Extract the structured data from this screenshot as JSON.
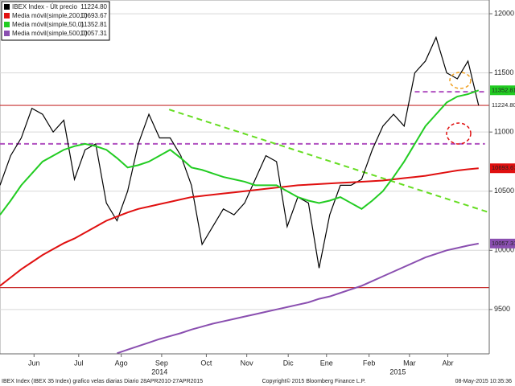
{
  "chart_data": {
    "type": "line",
    "xlim": [
      0,
      46
    ],
    "ylim": [
      9125,
      12116
    ],
    "yticks": [
      9500,
      10000,
      10500,
      11000,
      11500,
      12000
    ],
    "grid": true,
    "xticks": [
      {
        "value": 3.2,
        "label": "Jun"
      },
      {
        "value": 7.4,
        "label": "Jul"
      },
      {
        "value": 11.4,
        "label": "Ago"
      },
      {
        "value": 15.2,
        "label": "Sep"
      },
      {
        "value": 19.4,
        "label": "Oct"
      },
      {
        "value": 23.2,
        "label": "Nov"
      },
      {
        "value": 27.1,
        "label": "Dic"
      },
      {
        "value": 30.7,
        "label": "Ene"
      },
      {
        "value": 34.7,
        "label": "Feb"
      },
      {
        "value": 38.5,
        "label": "Mar"
      },
      {
        "value": 42.1,
        "label": "Abr"
      }
    ],
    "year_labels": [
      {
        "value": 15.0,
        "label": "2014"
      },
      {
        "value": 37.4,
        "label": "2015"
      }
    ],
    "x": [
      0,
      1,
      2,
      3,
      4,
      5,
      6,
      7,
      8,
      9,
      10,
      11,
      12,
      13,
      14,
      15,
      16,
      17,
      18,
      19,
      20,
      21,
      22,
      23,
      24,
      25,
      26,
      27,
      28,
      29,
      30,
      31,
      32,
      33,
      34,
      35,
      36,
      37,
      38,
      39,
      40,
      41,
      42,
      43,
      44,
      45
    ],
    "series": [
      {
        "name": "IBEX Index - Últ precio",
        "last_label": "11224.80",
        "color": "#000000",
        "box": false,
        "values": [
          10550,
          10800,
          10950,
          11200,
          11150,
          11000,
          11100,
          10600,
          10850,
          10900,
          10400,
          10250,
          10500,
          10900,
          11150,
          10950,
          10950,
          10800,
          10550,
          10050,
          10200,
          10350,
          10300,
          10400,
          10600,
          10800,
          10750,
          10200,
          10450,
          10400,
          9850,
          10300,
          10550,
          10550,
          10600,
          10850,
          11050,
          11150,
          11050,
          11500,
          11600,
          11800,
          11500,
          11450,
          11600,
          11224.8
        ]
      },
      {
        "name": "Media móvil(simple,200,0)",
        "last_label": "10693.67",
        "color": "#e01010",
        "box": true,
        "values": [
          9700,
          9770,
          9840,
          9900,
          9960,
          10010,
          10060,
          10100,
          10150,
          10200,
          10250,
          10285,
          10320,
          10350,
          10370,
          10390,
          10410,
          10430,
          10450,
          10460,
          10470,
          10480,
          10490,
          10500,
          10510,
          10520,
          10530,
          10540,
          10550,
          10555,
          10560,
          10565,
          10570,
          10575,
          10580,
          10585,
          10590,
          10600,
          10610,
          10620,
          10630,
          10645,
          10660,
          10675,
          10685,
          10693.67
        ]
      },
      {
        "name": "Media móvil(simple,50,0)",
        "last_label": "11352.81",
        "color": "#22cc22",
        "box": true,
        "values": [
          10300,
          10420,
          10550,
          10650,
          10750,
          10800,
          10850,
          10880,
          10900,
          10880,
          10850,
          10780,
          10700,
          10720,
          10750,
          10800,
          10850,
          10780,
          10700,
          10680,
          10650,
          10620,
          10600,
          10580,
          10550,
          10550,
          10550,
          10500,
          10450,
          10420,
          10400,
          10420,
          10450,
          10400,
          10350,
          10420,
          10500,
          10620,
          10750,
          10900,
          11050,
          11150,
          11250,
          11300,
          11320,
          11352.81
        ]
      },
      {
        "name": "Media móvil(simple,500,0)",
        "last_label": "10057.31",
        "color": "#8a4fb0",
        "box": true,
        "values": [
          null,
          null,
          null,
          null,
          null,
          null,
          null,
          null,
          null,
          null,
          null,
          9130,
          9160,
          9190,
          9220,
          9250,
          9275,
          9300,
          9330,
          9355,
          9380,
          9400,
          9420,
          9440,
          9460,
          9480,
          9500,
          9520,
          9540,
          9560,
          9590,
          9610,
          9640,
          9670,
          9700,
          9740,
          9780,
          9820,
          9860,
          9900,
          9940,
          9970,
          10000,
          10020,
          10040,
          10057.31
        ]
      }
    ],
    "hlines": [
      {
        "value": 11225,
        "color": "#c83030",
        "dash": false,
        "from": 0,
        "to": 46
      },
      {
        "value": 9685,
        "color": "#c83030",
        "dash": false,
        "from": 0,
        "to": 46
      },
      {
        "value": 10900,
        "color": "#b050c0",
        "dash": true,
        "from": 0,
        "to": 45.6
      },
      {
        "value": 11340,
        "color": "#b050c0",
        "dash": true,
        "from": 39,
        "to": 45.6
      }
    ],
    "trendline": {
      "x": [
        15.9,
        46
      ],
      "values": [
        11190,
        10320
      ],
      "color": "#66dd22"
    },
    "footer_left": "IBEX Index (IBEX 35 Index) grafico velas diarias  Diario 28APR2010-27APR2015",
    "footer_center": "Copyright© 2015 Bloomberg Finance L.P.",
    "footer_right": "08-May-2015 10:35:36"
  }
}
